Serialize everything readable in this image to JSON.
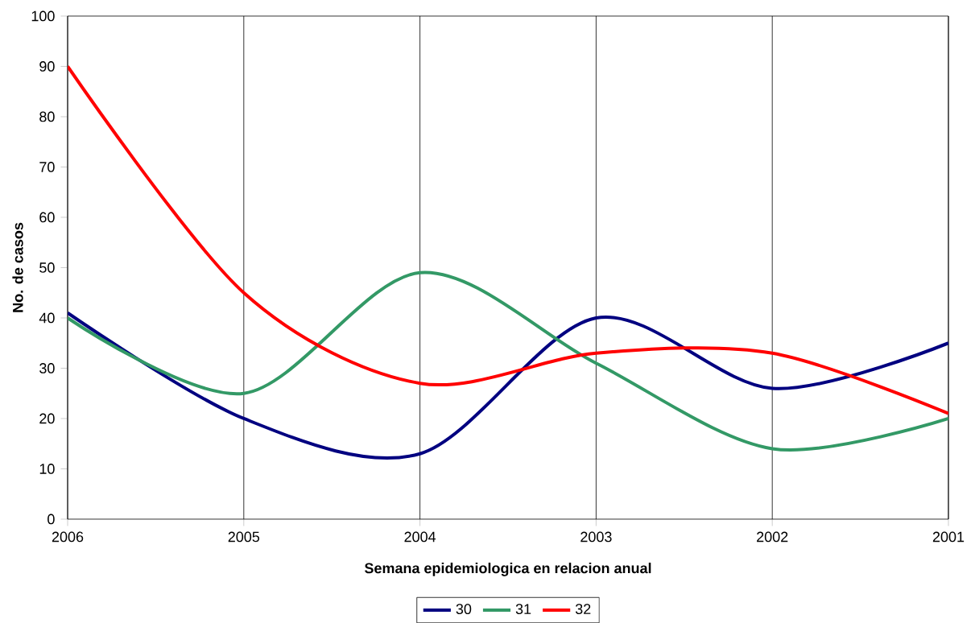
{
  "chart_data": {
    "type": "line",
    "xlabel": "Semana epidemiologica en relacion anual",
    "ylabel": "No. de casos",
    "categories": [
      "2006",
      "2005",
      "2004",
      "2003",
      "2002",
      "2001"
    ],
    "series": [
      {
        "name": "30",
        "color": "#000080",
        "values": [
          41,
          20,
          13,
          40,
          26,
          35
        ]
      },
      {
        "name": "31",
        "color": "#339966",
        "values": [
          40,
          25,
          49,
          31,
          14,
          20
        ]
      },
      {
        "name": "32",
        "color": "#ff0000",
        "values": [
          90,
          45,
          27,
          33,
          33,
          21
        ]
      }
    ],
    "ylim": [
      0,
      100
    ],
    "yticks": [
      0,
      10,
      20,
      30,
      40,
      50,
      60,
      70,
      80,
      90,
      100
    ],
    "grid": "x",
    "legend": "bottom",
    "marker": "none",
    "line_style": "solid"
  }
}
